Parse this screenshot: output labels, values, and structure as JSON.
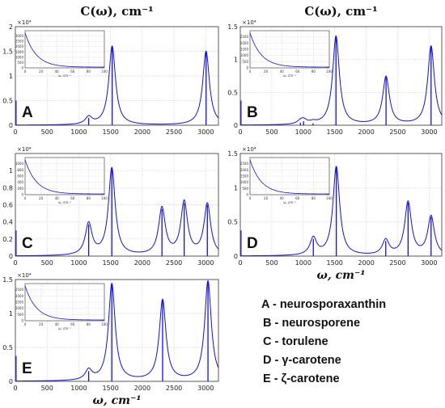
{
  "chart_data": [
    {
      "type": "line",
      "panel_label": "A",
      "title": "C(ω), cm⁻¹",
      "xlabel": "",
      "xlim": [
        0,
        3200
      ],
      "ylim": [
        0,
        2
      ],
      "y_exponent_label": "×10⁴",
      "x_ticks": [
        "0",
        "500",
        "1000",
        "1500",
        "2000",
        "2500",
        "3000"
      ],
      "y_ticks": [
        "0",
        "0.5",
        "1",
        "1.5",
        "2"
      ],
      "grid": true,
      "peaks": [
        {
          "x": 1155,
          "y": 0.15
        },
        {
          "x": 1525,
          "y": 1.6
        },
        {
          "x": 3005,
          "y": 1.5
        }
      ],
      "inset": {
        "xlim": [
          0,
          100
        ],
        "ylim": [
          0,
          3500
        ],
        "x_ticks": [
          "0",
          "20",
          "40",
          "60",
          "80",
          "100"
        ],
        "y_ticks": [
          "0",
          "500",
          "1000",
          "1500",
          "2000",
          "2500",
          "3000"
        ],
        "xlabel": "ω, cm⁻¹"
      }
    },
    {
      "type": "line",
      "panel_label": "B",
      "title": "C(ω), cm⁻¹",
      "xlabel": "",
      "xlim": [
        0,
        3200
      ],
      "ylim": [
        0,
        1.5
      ],
      "y_exponent_label": "×10⁴",
      "x_ticks": [
        "0",
        "500",
        "1000",
        "1500",
        "2000",
        "2500",
        "3000"
      ],
      "y_ticks": [
        "0",
        "0.5",
        "1",
        "1.5"
      ],
      "grid": true,
      "peaks": [
        {
          "x": 955,
          "y": 0.04
        },
        {
          "x": 1005,
          "y": 0.06
        },
        {
          "x": 1155,
          "y": 0.03
        },
        {
          "x": 1520,
          "y": 1.35
        },
        {
          "x": 2315,
          "y": 0.73
        },
        {
          "x": 3030,
          "y": 1.2
        }
      ],
      "inset": {
        "xlim": [
          0,
          100
        ],
        "ylim": [
          0,
          3000
        ],
        "x_ticks": [
          "0",
          "20",
          "40",
          "60",
          "80",
          "100"
        ],
        "y_ticks": [
          "0",
          "500",
          "1000",
          "1500",
          "2000",
          "2500"
        ],
        "xlabel": "ω, cm⁻¹"
      }
    },
    {
      "type": "line",
      "panel_label": "C",
      "title": "",
      "xlabel": "",
      "xlim": [
        0,
        3200
      ],
      "ylim": [
        0,
        1.2
      ],
      "y_exponent_label": "×10⁴",
      "x_ticks": [
        "0",
        "500",
        "1000",
        "1500",
        "2000",
        "2500",
        "3000"
      ],
      "y_ticks": [
        "0",
        "0.2",
        "0.4",
        "0.6",
        "0.8",
        "1"
      ],
      "grid": true,
      "peaks": [
        {
          "x": 1155,
          "y": 0.37
        },
        {
          "x": 1520,
          "y": 1.02
        },
        {
          "x": 2310,
          "y": 0.55
        },
        {
          "x": 2660,
          "y": 0.62
        },
        {
          "x": 3025,
          "y": 0.6
        }
      ],
      "inset": {
        "xlim": [
          0,
          100
        ],
        "ylim": [
          0,
          1200
        ],
        "x_ticks": [
          "0",
          "20",
          "40",
          "60",
          "80",
          "100"
        ],
        "y_ticks": [
          "0",
          "200",
          "400",
          "600",
          "800",
          "1000"
        ],
        "xlabel": "ω, cm⁻¹"
      }
    },
    {
      "type": "line",
      "panel_label": "D",
      "title": "",
      "xlabel": "ω, cm⁻¹",
      "xlim": [
        0,
        3200
      ],
      "ylim": [
        0,
        1.5
      ],
      "y_exponent_label": "×10⁴",
      "x_ticks": [
        "0",
        "500",
        "1000",
        "1500",
        "2000",
        "2500",
        "3000"
      ],
      "y_ticks": [
        "0",
        "0.5",
        "1",
        "1.5"
      ],
      "grid": true,
      "peaks": [
        {
          "x": 1160,
          "y": 0.25
        },
        {
          "x": 1525,
          "y": 1.3
        },
        {
          "x": 2310,
          "y": 0.22
        },
        {
          "x": 2665,
          "y": 0.78
        },
        {
          "x": 3030,
          "y": 0.57
        }
      ],
      "inset": {
        "xlim": [
          0,
          100
        ],
        "ylim": [
          0,
          3000
        ],
        "x_ticks": [
          "0",
          "20",
          "40",
          "60",
          "80",
          "100"
        ],
        "y_ticks": [
          "0",
          "500",
          "1000",
          "1500",
          "2000",
          "2500"
        ],
        "xlabel": "ω, cm⁻¹"
      }
    },
    {
      "type": "line",
      "panel_label": "E",
      "title": "",
      "xlabel": "ω, cm⁻¹",
      "xlim": [
        0,
        3200
      ],
      "ylim": [
        0,
        1.5
      ],
      "y_exponent_label": "×10⁴",
      "x_ticks": [
        "0",
        "500",
        "1000",
        "1500",
        "2000",
        "2500",
        "3000"
      ],
      "y_ticks": [
        "0",
        "0.5",
        "1",
        "1.5"
      ],
      "grid": true,
      "peaks": [
        {
          "x": 1155,
          "y": 0.15
        },
        {
          "x": 1520,
          "y": 1.43
        },
        {
          "x": 2320,
          "y": 1.19
        },
        {
          "x": 3035,
          "y": 1.47
        }
      ],
      "inset": {
        "xlim": [
          0,
          100
        ],
        "ylim": [
          0,
          3000
        ],
        "x_ticks": [
          "0",
          "20",
          "40",
          "60",
          "80",
          "100"
        ],
        "y_ticks": [
          "0",
          "500",
          "1000",
          "1500",
          "2000",
          "2500"
        ],
        "xlabel": "ω, cm⁻¹"
      }
    }
  ],
  "legend": [
    "A - neurosporaxanthin",
    "B - neurosporene",
    "C - torulene",
    "D - γ-carotene",
    "E - ζ-carotene"
  ],
  "colors": {
    "line": "#1010dd",
    "grid": "#d0d0d0",
    "axis": "#333333"
  }
}
